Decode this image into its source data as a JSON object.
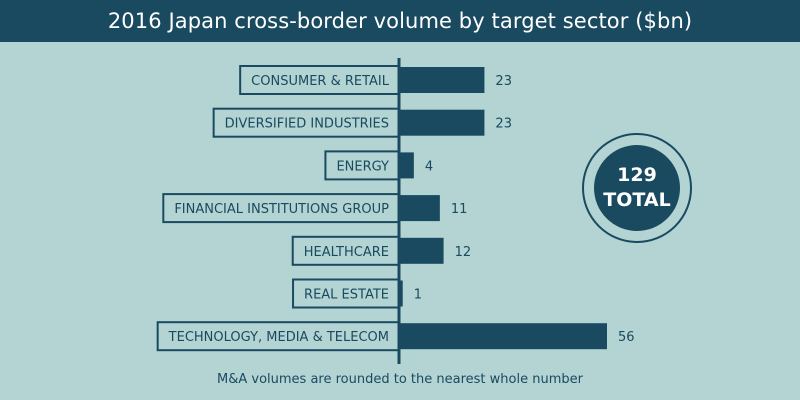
{
  "header": {
    "title": "2016 Japan cross-border volume by target sector ($bn)"
  },
  "total": {
    "value": "129",
    "label": "TOTAL"
  },
  "footer": {
    "note": "M&A volumes are rounded to the nearest whole number"
  },
  "colors": {
    "background": "#b3d4d3",
    "bar": "#1a4a60",
    "text": "#1a4a60",
    "header": "#1a4a60"
  },
  "chart_data": {
    "type": "bar",
    "orientation": "horizontal",
    "title": "2016 Japan cross-border volume by target sector ($bn)",
    "categories": [
      "CONSUMER & RETAIL",
      "DIVERSIFIED INDUSTRIES",
      "ENERGY",
      "FINANCIAL INSTITUTIONS GROUP",
      "HEALTHCARE",
      "REAL ESTATE",
      "TECHNOLOGY, MEDIA & TELECOM"
    ],
    "values": [
      23,
      23,
      4,
      11,
      12,
      1,
      56
    ],
    "xlabel": "",
    "ylabel": "",
    "xlim": [
      0,
      56
    ],
    "grid": false,
    "legend": "none"
  }
}
